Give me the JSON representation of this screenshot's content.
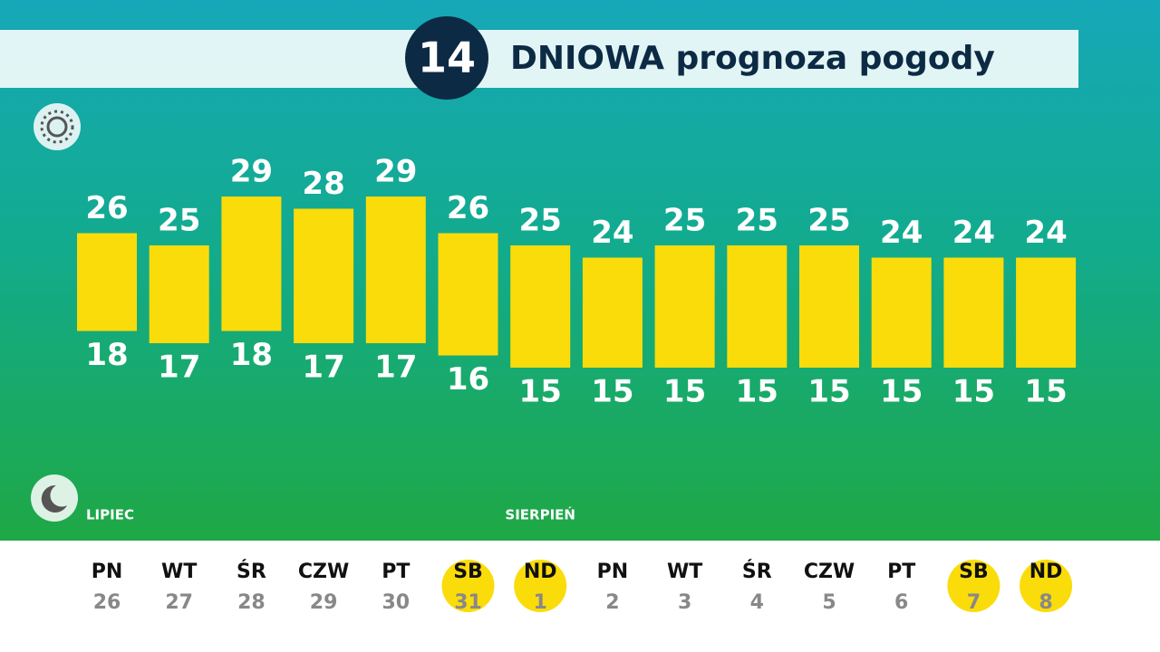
{
  "chart_data": {
    "type": "range-bar",
    "badge": "14",
    "title": "DNIOWA prognoza pogody",
    "categories": [
      "PN",
      "WT",
      "ŚR",
      "CZW",
      "PT",
      "SB",
      "ND",
      "PN",
      "WT",
      "ŚR",
      "CZW",
      "PT",
      "SB",
      "ND"
    ],
    "dates": [
      "26",
      "27",
      "28",
      "29",
      "30",
      "31",
      "1",
      "2",
      "3",
      "4",
      "5",
      "6",
      "7",
      "8"
    ],
    "highlighted": [
      false,
      false,
      false,
      false,
      false,
      true,
      true,
      false,
      false,
      false,
      false,
      false,
      true,
      true
    ],
    "months": [
      "LIPIEC",
      "SIERPIEŃ"
    ],
    "month_starts": [
      0,
      6
    ],
    "high": [
      26,
      25,
      29,
      28,
      29,
      26,
      25,
      24,
      25,
      25,
      25,
      24,
      24,
      24
    ],
    "low": [
      18,
      17,
      18,
      17,
      17,
      16,
      15,
      15,
      15,
      15,
      15,
      15,
      15,
      15
    ],
    "color": "#fadc0a"
  }
}
